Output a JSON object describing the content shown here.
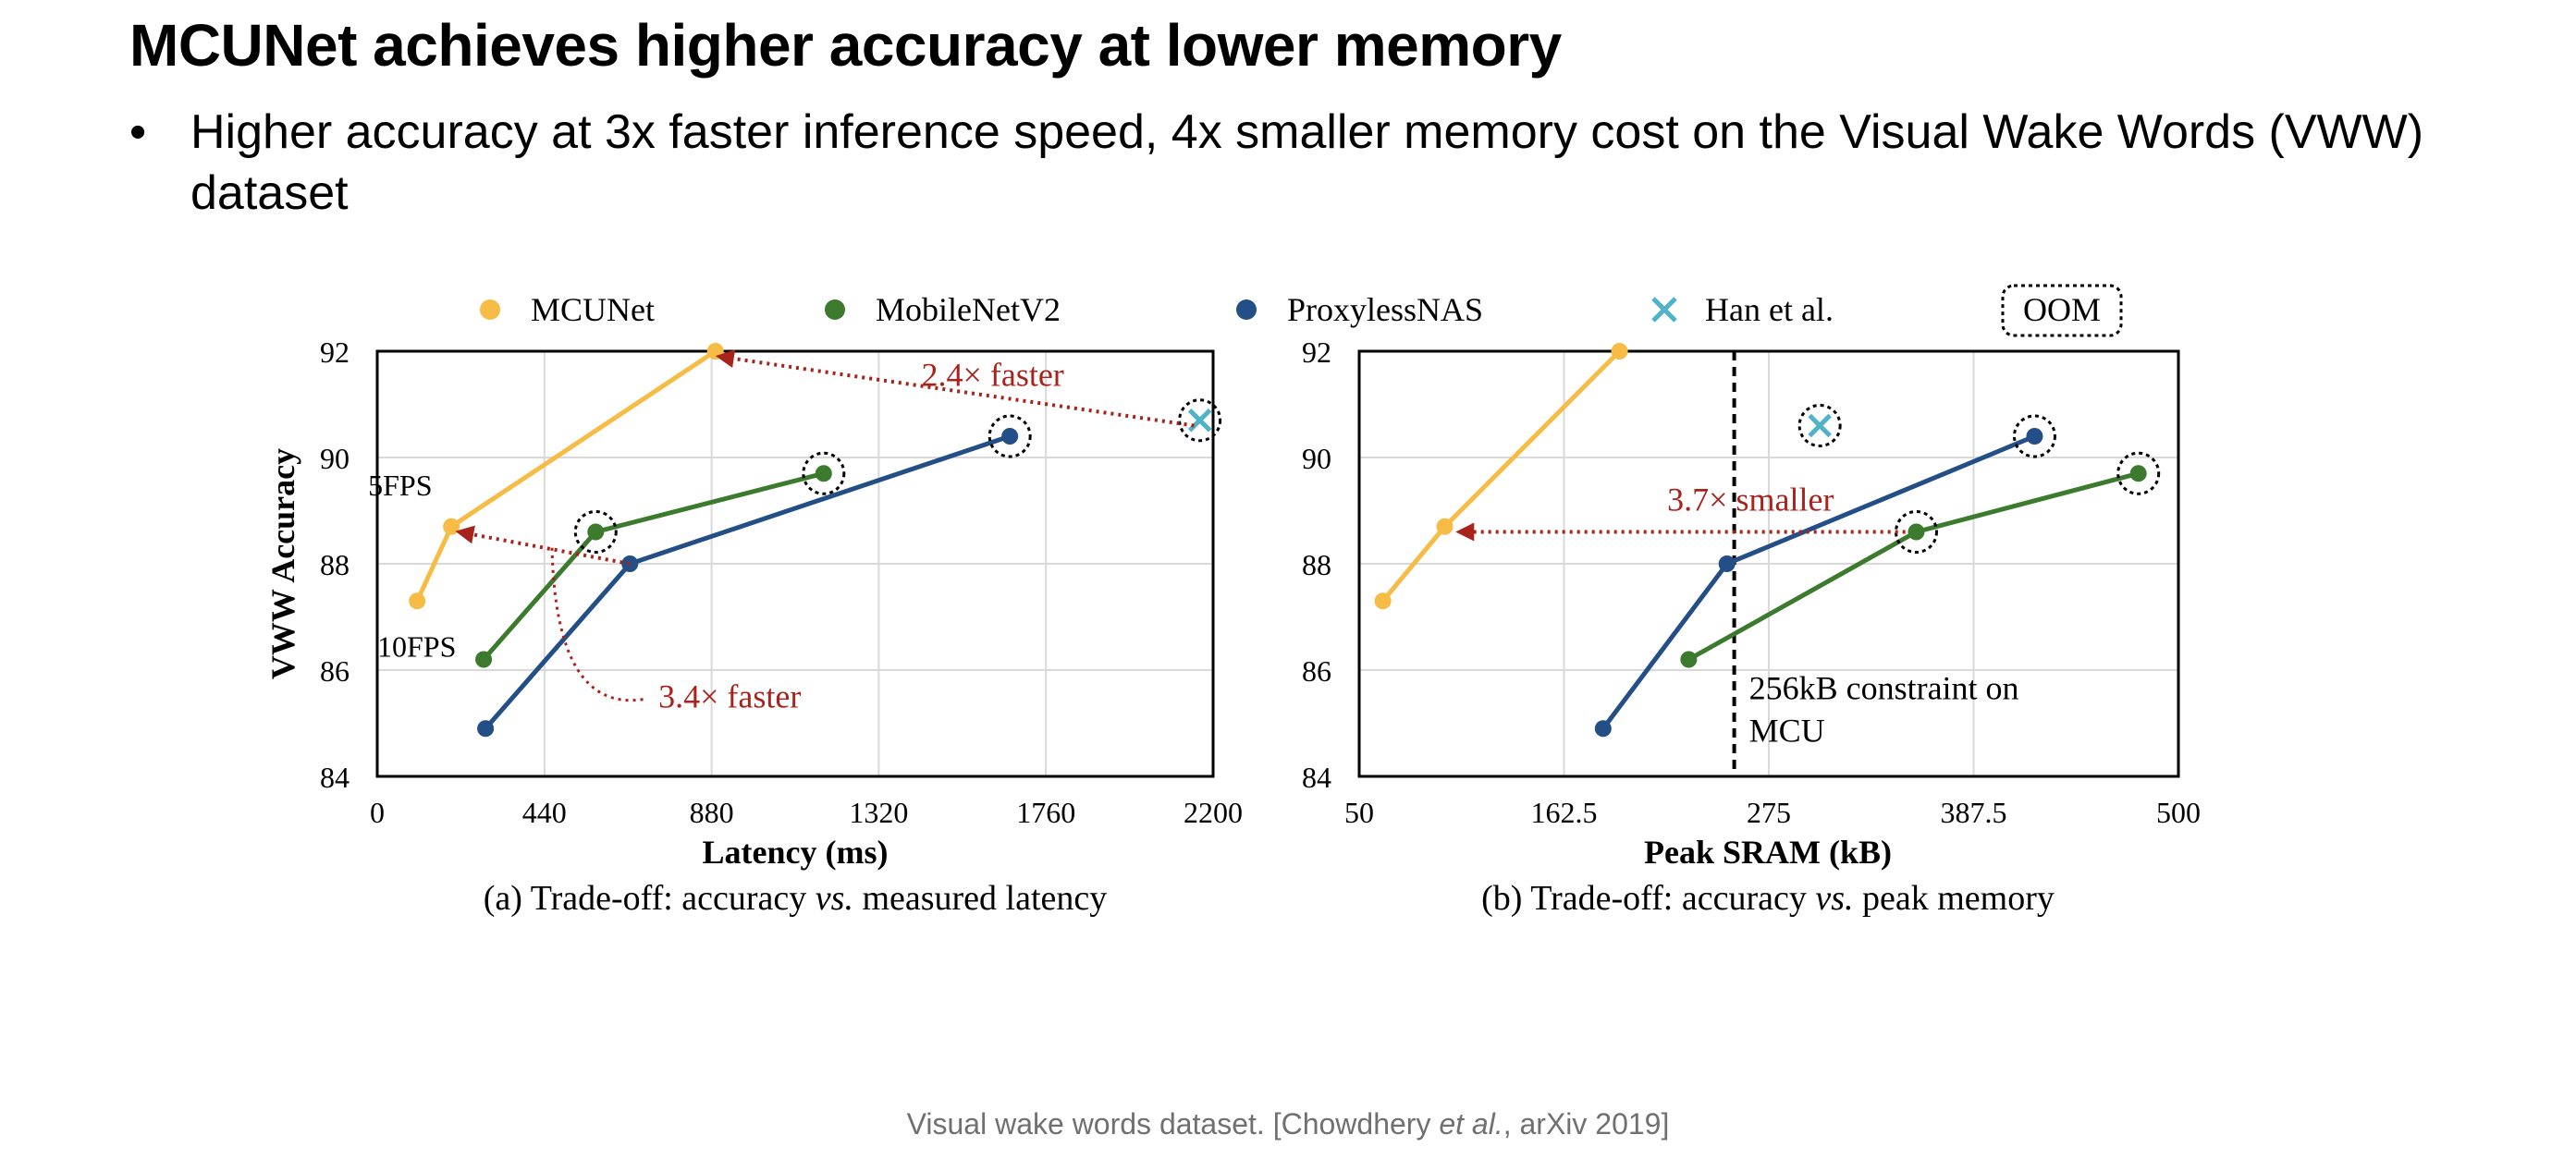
{
  "slide": {
    "title": "MCUNet achieves higher accuracy at lower memory",
    "bullet_marker": "•",
    "bullet": "Higher accuracy at 3x faster inference speed, 4x smaller memory cost on the Visual Wake Words (VWW) dataset",
    "citation_pre": "Visual wake words dataset. [Chowdhery ",
    "citation_em": "et al.",
    "citation_post": ", arXiv 2019]"
  },
  "legend": [
    {
      "name": "MCUNet",
      "color": "#F6BC45",
      "marker": "circle"
    },
    {
      "name": "MobileNetV2",
      "color": "#3C7A2D",
      "marker": "circle"
    },
    {
      "name": "ProxylessNAS",
      "color": "#234F86",
      "marker": "circle"
    },
    {
      "name": "Han et al.",
      "color": "#4EB3C6",
      "marker": "x"
    },
    {
      "name": "OOM",
      "color": "#000000",
      "marker": "dashed-box"
    }
  ],
  "chart_data": [
    {
      "type": "line",
      "caption_pre": "(a) Trade-off: accuracy ",
      "caption_em": "vs.",
      "caption_post": " measured latency",
      "xlabel": "Latency (ms)",
      "ylabel": "VWW Accuracy",
      "xlim": [
        0,
        2200
      ],
      "ylim": [
        84,
        92
      ],
      "xticks": [
        "0",
        "440",
        "880",
        "1320",
        "1760",
        "2200"
      ],
      "yticks": [
        "84",
        "86",
        "88",
        "90",
        "92"
      ],
      "grid": true,
      "series": [
        {
          "name": "MCUNet",
          "points": [
            [
              105,
              87.3
            ],
            [
              195,
              88.7
            ],
            [
              890,
              92.0
            ]
          ]
        },
        {
          "name": "MobileNetV2",
          "points": [
            [
              280,
              86.2
            ],
            [
              575,
              88.6
            ],
            [
              1175,
              89.7
            ]
          ],
          "oom": [
            false,
            true,
            true
          ]
        },
        {
          "name": "ProxylessNAS",
          "points": [
            [
              285,
              84.9
            ],
            [
              665,
              88.0
            ],
            [
              1665,
              90.4
            ]
          ],
          "oom": [
            false,
            false,
            true
          ]
        },
        {
          "name": "Han et al.",
          "points": [
            [
              2165,
              90.7
            ]
          ],
          "oom": [
            true
          ]
        }
      ],
      "annotations": [
        {
          "text": "5FPS",
          "at": [
            195,
            88.7
          ]
        },
        {
          "text": "10FPS",
          "at": [
            105,
            87.3
          ]
        },
        {
          "text": "2.4× faster",
          "from": [
            2150,
            90.6
          ],
          "to": [
            900,
            91.9
          ]
        },
        {
          "text": "3.4× faster",
          "from": [
            665,
            88.0
          ],
          "to": [
            215,
            88.6
          ]
        }
      ]
    },
    {
      "type": "line",
      "caption_pre": "(b) Trade-off: accuracy ",
      "caption_em": "vs.",
      "caption_post": " peak memory",
      "xlabel": "Peak SRAM (kB)",
      "ylabel": "",
      "xlim": [
        50,
        500
      ],
      "ylim": [
        84,
        92
      ],
      "xticks": [
        "50",
        "162.5",
        "275",
        "387.5",
        "500"
      ],
      "yticks": [
        "84",
        "86",
        "88",
        "90",
        "92"
      ],
      "grid": true,
      "series": [
        {
          "name": "MCUNet",
          "points": [
            [
              63,
              87.3
            ],
            [
              97,
              88.7
            ],
            [
              193,
              92.0
            ]
          ]
        },
        {
          "name": "MobileNetV2",
          "points": [
            [
              231,
              86.2
            ],
            [
              356,
              88.6
            ],
            [
              478,
              89.7
            ]
          ],
          "oom": [
            false,
            true,
            true
          ]
        },
        {
          "name": "ProxylessNAS",
          "points": [
            [
              184,
              84.9
            ],
            [
              252,
              88.0
            ],
            [
              421,
              90.4
            ]
          ],
          "oom": [
            false,
            false,
            true
          ]
        },
        {
          "name": "Han et al.",
          "points": [
            [
              303,
              90.6
            ]
          ],
          "oom": [
            true
          ]
        }
      ],
      "constraint": {
        "x": 256,
        "text_line1": "256kB constraint on",
        "text_line2": "MCU"
      },
      "annotations": [
        {
          "text": "3.7× smaller",
          "from": [
            350,
            88.6
          ],
          "to": [
            105,
            88.6
          ]
        }
      ]
    }
  ]
}
